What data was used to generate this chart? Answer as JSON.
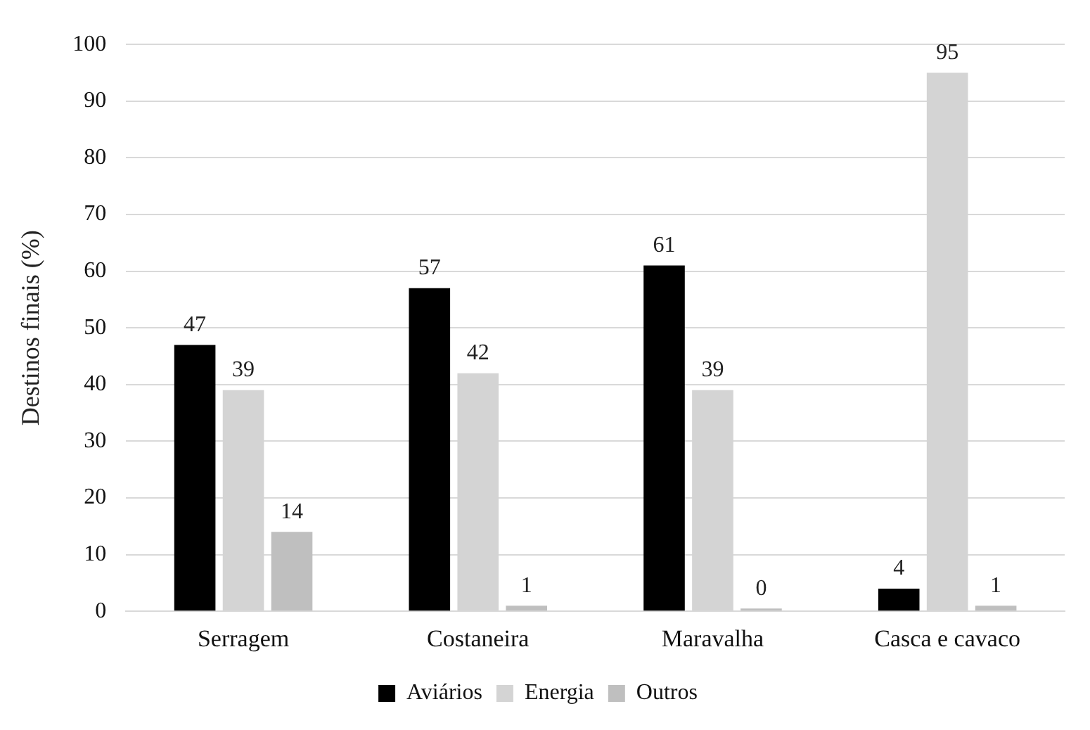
{
  "chart_data": {
    "type": "bar",
    "ylabel": "Destinos finais (%)",
    "categories": [
      "Serragem",
      "Costaneira",
      "Maravalha",
      "Casca e cavaco"
    ],
    "series": [
      {
        "name": "Aviários",
        "color": "#000000",
        "values": [
          47,
          57,
          61,
          4
        ]
      },
      {
        "name": "Energia",
        "color": "#d4d4d4",
        "values": [
          39,
          42,
          39,
          95
        ]
      },
      {
        "name": "Outros",
        "color": "#bfbfbf",
        "values": [
          14,
          1,
          0,
          1
        ]
      }
    ],
    "ylim": [
      0,
      100
    ],
    "yticks": [
      0,
      10,
      20,
      30,
      40,
      50,
      60,
      70,
      80,
      90,
      100
    ],
    "grid": "y",
    "legend": "bottom",
    "data_labels": true
  }
}
